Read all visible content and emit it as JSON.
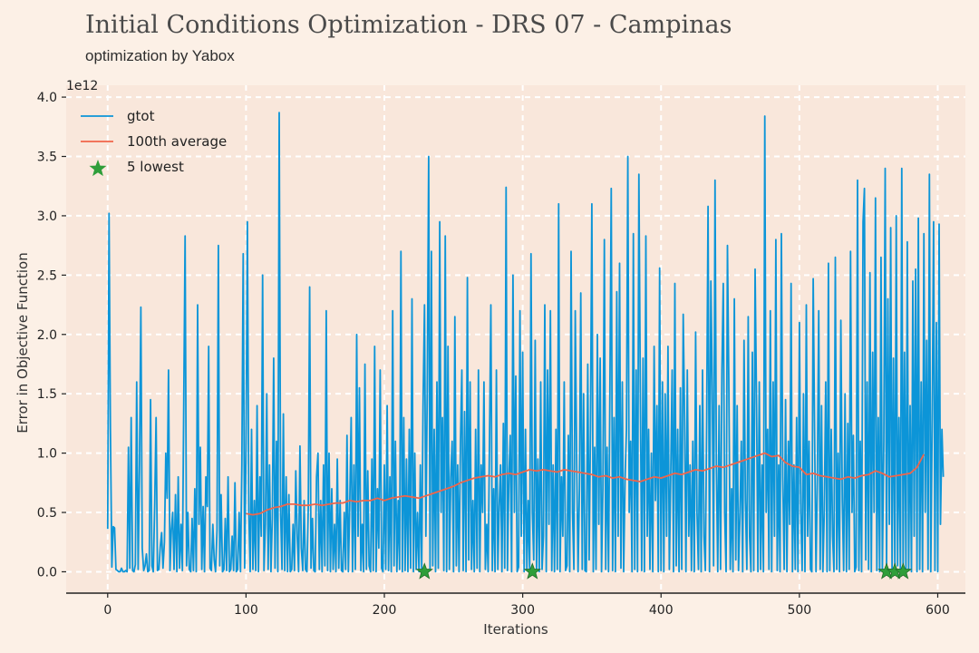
{
  "title": "Initial Conditions Optimization - DRS 07 - Campinas",
  "subtitle": "optimization by Yabox",
  "colors": {
    "background": "#fcf0e6",
    "plot_background": "#f9e7db",
    "grid": "#ffffff",
    "gtot": "#0c95d8",
    "average": "#f0654a",
    "lowest": "#2f9e3a"
  },
  "chart_data": {
    "type": "line",
    "xlabel": "Iterations",
    "ylabel": "Error in Objective Function",
    "y_multiplier_label": "1e12",
    "xlim": [
      -30,
      620
    ],
    "ylim": [
      -0.18,
      4.1
    ],
    "xticks": [
      0,
      100,
      200,
      300,
      400,
      500,
      600
    ],
    "yticks": [
      0.0,
      0.5,
      1.0,
      1.5,
      2.0,
      2.5,
      3.0,
      3.5,
      4.0
    ],
    "ytick_labels": [
      "0.0",
      "0.5",
      "1.0",
      "1.5",
      "2.0",
      "2.5",
      "3.0",
      "3.5",
      "4.0"
    ],
    "grid": true,
    "legend_position": "top-left",
    "series": [
      {
        "name": "gtot",
        "type": "line",
        "x_start": 0,
        "x_step": 1,
        "values": [
          0.36,
          3.02,
          1.2,
          0.04,
          0.38,
          0.37,
          0.02,
          0.01,
          0.0,
          0.0,
          0.03,
          0.0,
          0.0,
          0.01,
          0.0,
          1.05,
          0.03,
          1.3,
          0.01,
          0.0,
          0.06,
          1.6,
          0.02,
          0.9,
          2.23,
          0.2,
          0.01,
          0.05,
          0.15,
          0.0,
          0.01,
          1.45,
          0.05,
          0.0,
          0.58,
          1.3,
          0.01,
          0.02,
          0.21,
          0.33,
          0.03,
          0.25,
          1.0,
          0.62,
          1.7,
          0.01,
          0.35,
          0.5,
          0.02,
          0.65,
          0.0,
          0.8,
          0.03,
          0.4,
          0.01,
          1.4,
          2.83,
          0.05,
          0.5,
          0.02,
          0.0,
          0.45,
          0.01,
          0.7,
          0.0,
          2.25,
          0.4,
          1.05,
          0.02,
          0.55,
          0.0,
          0.8,
          0.55,
          1.9,
          0.03,
          0.01,
          0.4,
          0.1,
          0.0,
          0.35,
          2.75,
          0.05,
          0.65,
          0.0,
          0.02,
          0.45,
          0.01,
          0.8,
          0.0,
          0.02,
          0.3,
          0.01,
          0.75,
          0.0,
          0.02,
          0.5,
          0.0,
          0.9,
          2.68,
          0.03,
          1.05,
          2.95,
          0.5,
          0.0,
          1.2,
          0.02,
          0.6,
          0.01,
          1.4,
          0.0,
          0.8,
          0.3,
          2.5,
          0.01,
          0.4,
          1.5,
          0.02,
          0.9,
          0.0,
          0.45,
          1.8,
          0.03,
          1.1,
          0.0,
          3.87,
          0.5,
          0.02,
          1.33,
          0.01,
          0.8,
          0.0,
          0.65,
          0.0,
          0.02,
          0.4,
          0.01,
          0.85,
          0.3,
          0.0,
          1.06,
          0.2,
          0.01,
          0.6,
          0.02,
          0.0,
          0.55,
          2.4,
          0.03,
          0.45,
          0.01,
          0.0,
          0.8,
          1.0,
          0.02,
          0.6,
          0.0,
          0.9,
          0.05,
          2.2,
          0.01,
          1.0,
          0.0,
          0.7,
          0.02,
          0.4,
          0.0,
          0.95,
          0.03,
          0.6,
          0.01,
          0.0,
          0.5,
          0.02,
          1.15,
          0.0,
          0.6,
          1.3,
          0.0,
          0.9,
          0.02,
          2.0,
          0.3,
          1.55,
          0.01,
          0.4,
          0.0,
          1.75,
          0.02,
          0.85,
          0.05,
          0.0,
          0.95,
          0.01,
          1.9,
          0.0,
          0.7,
          0.2,
          1.7,
          0.03,
          0.0,
          0.9,
          0.02,
          1.4,
          0.01,
          0.8,
          0.0,
          2.2,
          0.05,
          1.1,
          0.0,
          0.6,
          0.02,
          2.7,
          0.0,
          1.3,
          0.01,
          0.95,
          0.0,
          1.2,
          0.03,
          2.3,
          0.0,
          1.0,
          0.02,
          0.5,
          0.0,
          0.9,
          0.01,
          1.4,
          2.25,
          0.3,
          1.5,
          3.5,
          0.01,
          2.7,
          0.05,
          1.2,
          0.0,
          1.6,
          0.03,
          2.95,
          0.5,
          1.3,
          0.01,
          2.83,
          0.0,
          1.9,
          0.02,
          0.8,
          1.1,
          0.0,
          2.15,
          0.05,
          0.9,
          0.0,
          1.1,
          1.7,
          0.01,
          1.35,
          0.0,
          2.48,
          0.1,
          1.6,
          0.02,
          0.6,
          0.0,
          1.2,
          0.03,
          1.7,
          0.0,
          0.9,
          0.5,
          1.6,
          0.02,
          0.4,
          0.0,
          1.1,
          2.25,
          0.01,
          0.7,
          0.0,
          1.7,
          0.02,
          0.55,
          0.9,
          0.0,
          1.25,
          0.03,
          3.24,
          0.01,
          0.8,
          1.15,
          0.0,
          2.5,
          0.5,
          1.65,
          0.0,
          0.04,
          2.2,
          0.3,
          1.85,
          0.0,
          1.2,
          0.02,
          0.6,
          0.0,
          2.68,
          0.5,
          0.1,
          1.95,
          0.01,
          0.95,
          0.0,
          1.6,
          0.02,
          0.3,
          2.25,
          0.0,
          1.7,
          0.4,
          2.2,
          0.01,
          0.9,
          0.0,
          1.2,
          0.02,
          3.1,
          0.0,
          0.8,
          0.3,
          1.6,
          0.01,
          0.05,
          1.15,
          0.0,
          2.7,
          0.5,
          0.02,
          2.2,
          0.9,
          0.0,
          0.7,
          2.35,
          0.02,
          1.5,
          0.01,
          0.0,
          1.75,
          0.1,
          1.2,
          3.1,
          0.0,
          1.05,
          0.02,
          2.0,
          0.4,
          1.8,
          0.0,
          0.7,
          2.8,
          0.02,
          1.05,
          0.0,
          1.5,
          3.23,
          0.01,
          1.3,
          0.0,
          2.36,
          0.3,
          2.6,
          0.03,
          1.6,
          0.0,
          0.8,
          1.2,
          3.5,
          0.5,
          1.1,
          0.0,
          2.85,
          0.02,
          1.7,
          0.0,
          3.35,
          1.5,
          0.01,
          1.8,
          0.0,
          2.83,
          0.3,
          1.2,
          0.02,
          1.0,
          0.0,
          1.9,
          0.6,
          1.4,
          0.0,
          2.56,
          0.01,
          1.6,
          0.0,
          1.5,
          0.3,
          1.9,
          0.02,
          0.8,
          1.7,
          0.0,
          2.43,
          0.05,
          1.2,
          0.0,
          1.55,
          0.02,
          2.17,
          1.3,
          0.0,
          1.7,
          0.3,
          0.9,
          0.01,
          1.1,
          0.0,
          2.02,
          0.5,
          0.02,
          1.4,
          0.0,
          1.7,
          0.3,
          0.01,
          1.3,
          3.08,
          0.0,
          2.45,
          1.6,
          0.05,
          3.3,
          0.9,
          0.0,
          1.4,
          0.02,
          1.7,
          2.43,
          0.5,
          0.0,
          2.75,
          1.6,
          0.02,
          0.7,
          0.0,
          2.3,
          0.1,
          1.4,
          0.01,
          0.45,
          1.1,
          0.0,
          1.95,
          0.6,
          0.02,
          2.15,
          0.3,
          0.0,
          1.85,
          0.01,
          2.55,
          1.4,
          0.0,
          1.6,
          0.02,
          0.9,
          0.0,
          3.84,
          0.5,
          1.2,
          0.02,
          2.2,
          0.0,
          1.6,
          0.3,
          2.8,
          0.01,
          0.9,
          0.0,
          2.85,
          0.8,
          0.02,
          1.45,
          0.0,
          1.1,
          0.4,
          2.43,
          0.0,
          0.9,
          0.02,
          1.3,
          0.0,
          2.1,
          0.5,
          0.01,
          1.5,
          0.0,
          2.25,
          0.3,
          1.1,
          0.02,
          0.0,
          2.47,
          1.2,
          0.0,
          0.8,
          2.2,
          0.02,
          1.4,
          0.0,
          0.5,
          1.6,
          0.0,
          2.6,
          0.01,
          1.2,
          0.3,
          0.0,
          2.65,
          0.02,
          1.0,
          0.0,
          2.12,
          0.6,
          0.01,
          1.5,
          0.0,
          1.25,
          0.02,
          2.7,
          0.5,
          1.15,
          0.0,
          0.04,
          3.3,
          0.01,
          1.1,
          0.0,
          2.95,
          3.23,
          0.1,
          1.6,
          0.02,
          2.52,
          0.0,
          1.85,
          0.5,
          3.15,
          0.01,
          1.3,
          0.0,
          2.65,
          0.02,
          1.1,
          3.4,
          0.0,
          2.3,
          0.4,
          2.9,
          0.01,
          1.8,
          0.0,
          3.0,
          0.05,
          1.3,
          0.0,
          3.4,
          0.0,
          1.85,
          0.02,
          2.78,
          0.01,
          1.4,
          0.0,
          2.45,
          0.3,
          2.55,
          0.0,
          2.98,
          0.02,
          1.6,
          0.0,
          2.85,
          0.5,
          1.95,
          0.02,
          3.35,
          0.0,
          1.3,
          2.95,
          0.01,
          2.1,
          0.0,
          2.93,
          0.4,
          1.2,
          0.8
        ]
      },
      {
        "name": "100th average",
        "type": "line",
        "x": [
          100,
          105,
          110,
          115,
          120,
          125,
          130,
          135,
          140,
          145,
          150,
          155,
          160,
          165,
          170,
          175,
          180,
          185,
          190,
          195,
          200,
          205,
          210,
          215,
          220,
          225,
          230,
          235,
          240,
          245,
          250,
          255,
          260,
          265,
          270,
          275,
          280,
          285,
          290,
          295,
          300,
          305,
          310,
          315,
          320,
          325,
          330,
          335,
          340,
          345,
          350,
          355,
          360,
          365,
          370,
          375,
          380,
          385,
          390,
          395,
          400,
          405,
          410,
          415,
          420,
          425,
          430,
          435,
          440,
          445,
          450,
          455,
          460,
          465,
          470,
          475,
          480,
          485,
          490,
          495,
          500,
          505,
          510,
          515,
          520,
          525,
          530,
          535,
          540,
          545,
          550,
          555,
          560,
          565,
          570,
          575,
          580,
          585,
          590
        ],
        "values": [
          0.49,
          0.48,
          0.49,
          0.52,
          0.54,
          0.55,
          0.57,
          0.57,
          0.56,
          0.56,
          0.57,
          0.56,
          0.57,
          0.58,
          0.58,
          0.6,
          0.59,
          0.6,
          0.6,
          0.62,
          0.6,
          0.62,
          0.63,
          0.64,
          0.63,
          0.62,
          0.64,
          0.66,
          0.68,
          0.7,
          0.72,
          0.75,
          0.77,
          0.79,
          0.8,
          0.81,
          0.8,
          0.82,
          0.83,
          0.82,
          0.84,
          0.86,
          0.85,
          0.86,
          0.85,
          0.84,
          0.86,
          0.85,
          0.84,
          0.83,
          0.82,
          0.8,
          0.81,
          0.79,
          0.8,
          0.78,
          0.77,
          0.76,
          0.78,
          0.8,
          0.79,
          0.81,
          0.83,
          0.82,
          0.84,
          0.86,
          0.85,
          0.87,
          0.89,
          0.88,
          0.9,
          0.92,
          0.94,
          0.96,
          0.98,
          1.0,
          0.97,
          0.98,
          0.92,
          0.89,
          0.88,
          0.82,
          0.83,
          0.81,
          0.8,
          0.79,
          0.78,
          0.8,
          0.79,
          0.81,
          0.82,
          0.85,
          0.83,
          0.8,
          0.81,
          0.82,
          0.83,
          0.88,
          0.99
        ]
      },
      {
        "name": "5 lowest",
        "type": "scatter",
        "x": [
          229,
          307,
          563,
          569,
          575
        ],
        "values": [
          0.0,
          0.0,
          0.0,
          0.0,
          0.0
        ]
      }
    ]
  }
}
